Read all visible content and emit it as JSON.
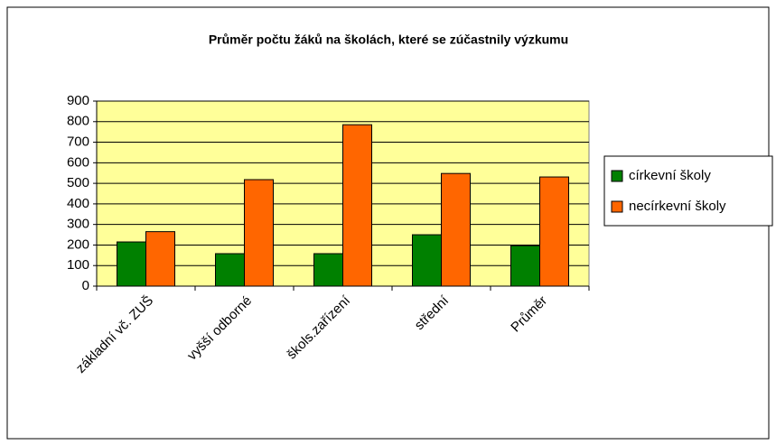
{
  "chart_data": {
    "type": "bar",
    "title": "Průměr počtu žáků na školách, které se zúčastnily výzkumu",
    "categories": [
      "základní vč. ZUŠ",
      "vyšší odborné",
      "škols.zařízení",
      "střední",
      "Průměr"
    ],
    "series": [
      {
        "name": "církevní školy",
        "color": "#008000",
        "values": [
          215,
          158,
          158,
          250,
          197
        ]
      },
      {
        "name": "necírkevní školy",
        "color": "#ff6600",
        "values": [
          265,
          518,
          785,
          548,
          531
        ]
      }
    ],
    "ylim": [
      0,
      900
    ],
    "yticks": [
      0,
      100,
      200,
      300,
      400,
      500,
      600,
      700,
      800,
      900
    ],
    "grid": true,
    "legend": "right",
    "plot_background": "#ffff99"
  }
}
